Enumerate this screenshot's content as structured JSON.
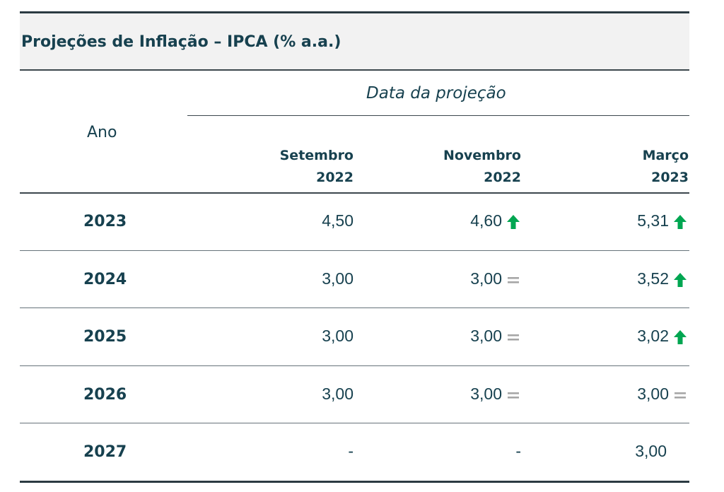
{
  "title": "Projeções de Inflação – IPCA (% a.a.)",
  "header": {
    "group_label": "Data da projeção",
    "row_label": "Ano",
    "columns": [
      {
        "month": "Setembro",
        "year": "2022"
      },
      {
        "month": "Novembro",
        "year": "2022"
      },
      {
        "month": "Março",
        "year": "2023"
      }
    ]
  },
  "rows": [
    {
      "year": "2023",
      "values": [
        "4,50",
        "4,60",
        "5,31"
      ],
      "indicators": [
        "",
        "up",
        "up"
      ]
    },
    {
      "year": "2024",
      "values": [
        "3,00",
        "3,00",
        "3,52"
      ],
      "indicators": [
        "",
        "equal",
        "up"
      ]
    },
    {
      "year": "2025",
      "values": [
        "3,00",
        "3,00",
        "3,02"
      ],
      "indicators": [
        "",
        "equal",
        "up"
      ]
    },
    {
      "year": "2026",
      "values": [
        "3,00",
        "3,00",
        "3,00"
      ],
      "indicators": [
        "",
        "equal",
        "equal"
      ]
    },
    {
      "year": "2027",
      "values": [
        "-",
        "-",
        "3,00"
      ],
      "indicators": [
        "",
        "",
        ""
      ]
    }
  ],
  "icons": {
    "up": "arrow-up-icon",
    "equal": "equal-sign-icon"
  },
  "colors": {
    "text": "#17414f",
    "up": "#00a651",
    "equal": "#a6a6a6",
    "title_band": "#f2f2f2"
  },
  "chart_data": {
    "type": "table",
    "title": "Projeções de Inflação – IPCA (% a.a.)",
    "column_group": "Data da projeção",
    "row_header": "Ano",
    "columns": [
      "Setembro 2022",
      "Novembro 2022",
      "Março 2023"
    ],
    "rows": [
      "2023",
      "2024",
      "2025",
      "2026",
      "2027"
    ],
    "values": [
      [
        4.5,
        4.6,
        5.31
      ],
      [
        3.0,
        3.0,
        3.52
      ],
      [
        3.0,
        3.0,
        3.02
      ],
      [
        3.0,
        3.0,
        3.0
      ],
      [
        null,
        null,
        3.0
      ]
    ],
    "indicators": [
      [
        "",
        "up",
        "up"
      ],
      [
        "",
        "equal",
        "up"
      ],
      [
        "",
        "equal",
        "up"
      ],
      [
        "",
        "equal",
        "equal"
      ],
      [
        "",
        "",
        ""
      ]
    ]
  }
}
